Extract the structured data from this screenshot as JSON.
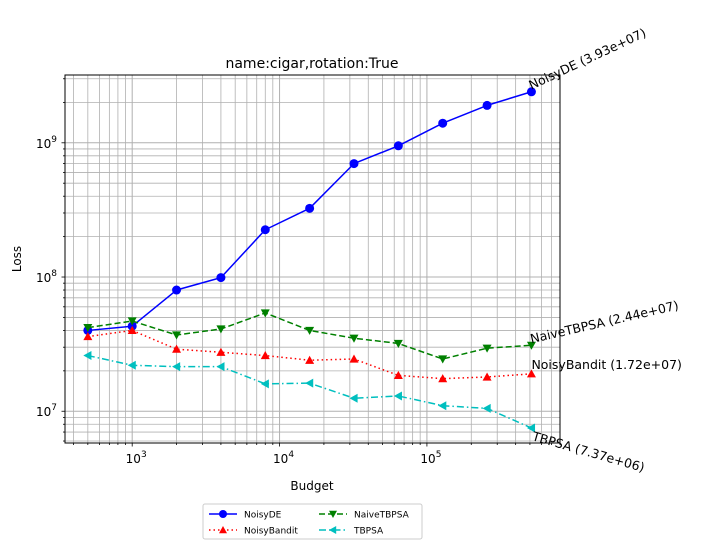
{
  "chart_data": {
    "type": "line",
    "title": "name:cigar,rotation:True",
    "xlabel": "Budget",
    "ylabel": "Loss",
    "xscale": "log",
    "yscale": "log",
    "xlim": [
      350,
      800000
    ],
    "ylim": [
      5800000,
      3200000000
    ],
    "grid": true,
    "legend_placement": "below-center",
    "x_ticks": [
      {
        "base": "10",
        "exp": "3",
        "value": 1000
      },
      {
        "base": "10",
        "exp": "4",
        "value": 10000
      },
      {
        "base": "10",
        "exp": "5",
        "value": 100000
      }
    ],
    "y_ticks": [
      {
        "base": "10",
        "exp": "7",
        "value": 10000000
      },
      {
        "base": "10",
        "exp": "8",
        "value": 100000000
      },
      {
        "base": "10",
        "exp": "9",
        "value": 1000000000
      }
    ],
    "x": [
      500,
      1000,
      2000,
      4000,
      8000,
      16000,
      32000,
      64000,
      128000,
      256000,
      512000
    ],
    "series": [
      {
        "name": "NoisyDE",
        "color": "#0000ff",
        "dash": "solid",
        "marker": "circle",
        "values": [
          40000000,
          43000000,
          80000000,
          99000000,
          225000000,
          325000000,
          700000000,
          950000000,
          1400000000,
          1900000000,
          2400000000
        ],
        "annotation": "NoisyDE (3.93e+07)",
        "annotation_rotation": -25
      },
      {
        "name": "NaiveTBPSA",
        "color": "#008000",
        "dash": "dashed",
        "marker": "triangle-down",
        "values": [
          42000000,
          47000000,
          37000000,
          41000000,
          54000000,
          40000000,
          35000000,
          32000000,
          24500000,
          29500000,
          31000000
        ],
        "annotation": "NaiveTBPSA (2.44e+07)",
        "annotation_rotation": -13
      },
      {
        "name": "NoisyBandit",
        "color": "#ff0000",
        "dash": "dotted",
        "marker": "triangle-up",
        "values": [
          36000000,
          40000000,
          29000000,
          27500000,
          26000000,
          24000000,
          24500000,
          18500000,
          17500000,
          18000000,
          19000000
        ],
        "annotation": "NoisyBandit (1.72e+07)",
        "annotation_rotation": 0
      },
      {
        "name": "TBPSA",
        "color": "#00bfbf",
        "dash": "dashdot",
        "marker": "triangle-left",
        "values": [
          26000000,
          22000000,
          21500000,
          21500000,
          16000000,
          16200000,
          12500000,
          13000000,
          11000000,
          10500000,
          7500000
        ],
        "annotation": "TBPSA (7.37e+06)",
        "annotation_rotation": 16
      }
    ]
  }
}
